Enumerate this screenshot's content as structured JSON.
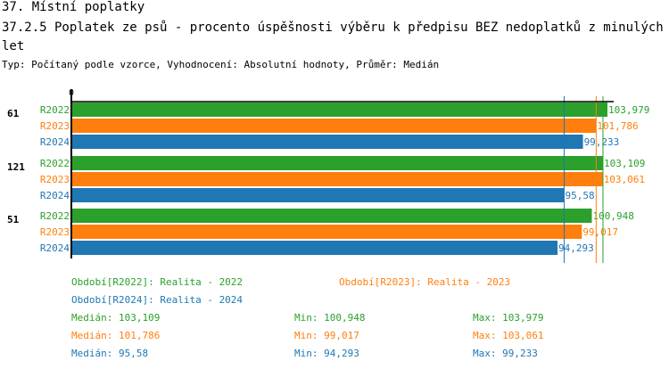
{
  "header": {
    "title": "37. Místní poplatky",
    "subtitle": "37.2.5 Poplatek ze psů - procento úspěšnosti výběru k předpisu BEZ nedoplatků z minulých let",
    "info": "Typ: Počítaný podle vzorce, Vyhodnocení: Absolutní hodnoty, Průměr: Medián"
  },
  "colors": {
    "R2022": "#2ca02c",
    "R2023": "#ff7f0e",
    "R2024": "#1f77b4"
  },
  "chart_data": {
    "type": "bar",
    "orientation": "horizontal",
    "xlim": [
      0,
      104
    ],
    "x_tick_labels": [
      "0"
    ],
    "groups": [
      "61",
      "121",
      "51"
    ],
    "series": [
      {
        "name": "R2022",
        "values": [
          103.979,
          103.109,
          100.948
        ],
        "labels": [
          "103,979",
          "103,109",
          "100,948"
        ],
        "median": 103.109
      },
      {
        "name": "R2023",
        "values": [
          101.786,
          103.061,
          99.017
        ],
        "labels": [
          "101,786",
          "103,061",
          "99,017"
        ],
        "median": 101.786
      },
      {
        "name": "R2024",
        "values": [
          99.233,
          95.58,
          94.293
        ],
        "labels": [
          "99,233",
          "95,58",
          "94,293"
        ],
        "median": 95.58
      }
    ]
  },
  "legend": {
    "periods": [
      "Období[R2022]: Realita - 2022",
      "Období[R2023]: Realita - 2023",
      "Období[R2024]: Realita - 2024"
    ],
    "stats": [
      [
        "Medián: 103,109",
        "Min: 100,948",
        "Max: 103,979"
      ],
      [
        "Medián: 101,786",
        "Min: 99,017",
        "Max: 103,061"
      ],
      [
        "Medián: 95,58",
        "Min: 94,293",
        "Max: 99,233"
      ]
    ]
  }
}
